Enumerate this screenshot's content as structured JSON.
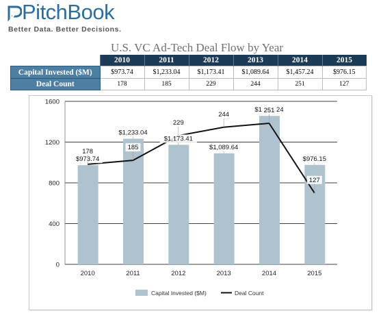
{
  "logo": {
    "name": "PitchBook",
    "tagline": "Better Data. Better Decisions."
  },
  "table": {
    "title": "U.S. VC Ad-Tech Deal Flow by Year",
    "years": [
      "2010",
      "2011",
      "2012",
      "2013",
      "2014",
      "2015"
    ],
    "rows": [
      {
        "label": "Capital Invested ($M)",
        "values": [
          "$973.74",
          "$1,233.04",
          "$1,173.41",
          "$1,089.64",
          "$1,457.24",
          "$976.15"
        ]
      },
      {
        "label": "Deal Count",
        "values": [
          "178",
          "185",
          "229",
          "244",
          "251",
          "127"
        ]
      }
    ]
  },
  "colors": {
    "bar": "#afc3cf",
    "line": "#111111",
    "header_bg": "#1c3b57",
    "row_head_bg": "#4d7fa3",
    "logo_blue": "#2d6e9c"
  },
  "chart_data": {
    "type": "bar",
    "categories": [
      "2010",
      "2011",
      "2012",
      "2013",
      "2014",
      "2015"
    ],
    "series": [
      {
        "name": "Capital Invested ($M)",
        "type": "bar",
        "values": [
          973.74,
          1233.04,
          1173.41,
          1089.64,
          1457.24,
          976.15
        ],
        "labels": [
          "$973.74",
          "$1,233.04",
          "$1,173.41",
          "$1,089.64",
          "$1,457.24",
          "$976.15"
        ]
      },
      {
        "name": "Deal Count",
        "type": "line",
        "values": [
          178,
          185,
          229,
          244,
          251,
          127
        ],
        "labels": [
          "178",
          "185",
          "229",
          "244",
          "251",
          "127"
        ]
      }
    ],
    "ylim": [
      0,
      1600
    ],
    "yticks": [
      0,
      400,
      800,
      1200,
      1600
    ],
    "y2lim": [
      0,
      290
    ],
    "grid": true,
    "legend": "bottom"
  }
}
